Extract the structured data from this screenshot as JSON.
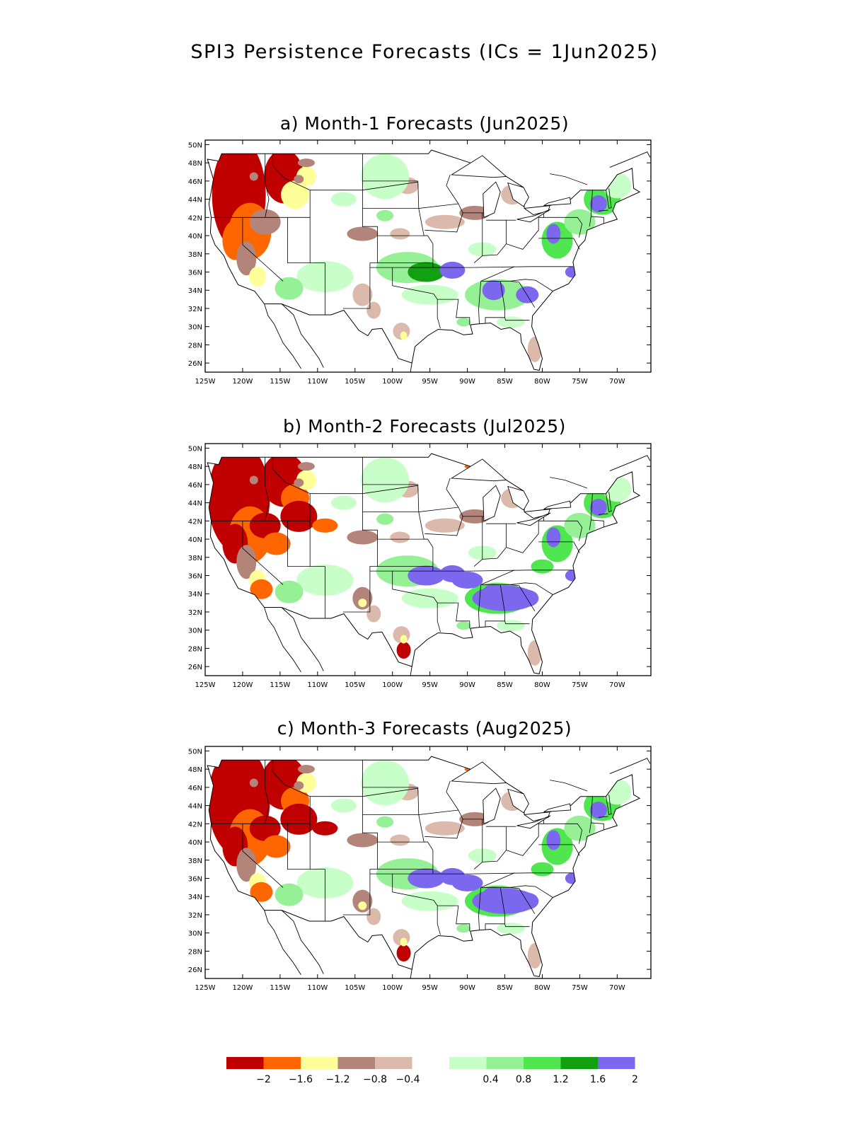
{
  "title": "SPI3 Persistence Forecasts (ICs = 1Jun2025)",
  "lat_ticks": [
    "50N",
    "48N",
    "46N",
    "44N",
    "42N",
    "40N",
    "38N",
    "36N",
    "34N",
    "32N",
    "30N",
    "28N",
    "26N"
  ],
  "lon_ticks": [
    "125W",
    "120W",
    "115W",
    "110W",
    "105W",
    "100W",
    "95W",
    "90W",
    "85W",
    "80W",
    "75W",
    "70W"
  ],
  "panels": [
    {
      "label": "a) Month-1 Forecasts (Jun2025)",
      "month": "Jun2025"
    },
    {
      "label": "b) Month-2 Forecasts (Jul2025)",
      "month": "Jul2025"
    },
    {
      "label": "c) Month-3 Forecasts (Aug2025)",
      "month": "Aug2025"
    }
  ],
  "colorbar": {
    "colors": [
      "#c00000",
      "#ff6600",
      "#ffff99",
      "#b3857a",
      "#dcbaab",
      "#ffffff",
      "#c8ffc8",
      "#96f096",
      "#50e650",
      "#10a010",
      "#7b68ee"
    ],
    "labels": [
      "-2",
      "-1.6",
      "-1.2",
      "-0.8",
      "-0.4",
      "0.4",
      "0.8",
      "1.2",
      "1.6",
      "2"
    ]
  }
}
